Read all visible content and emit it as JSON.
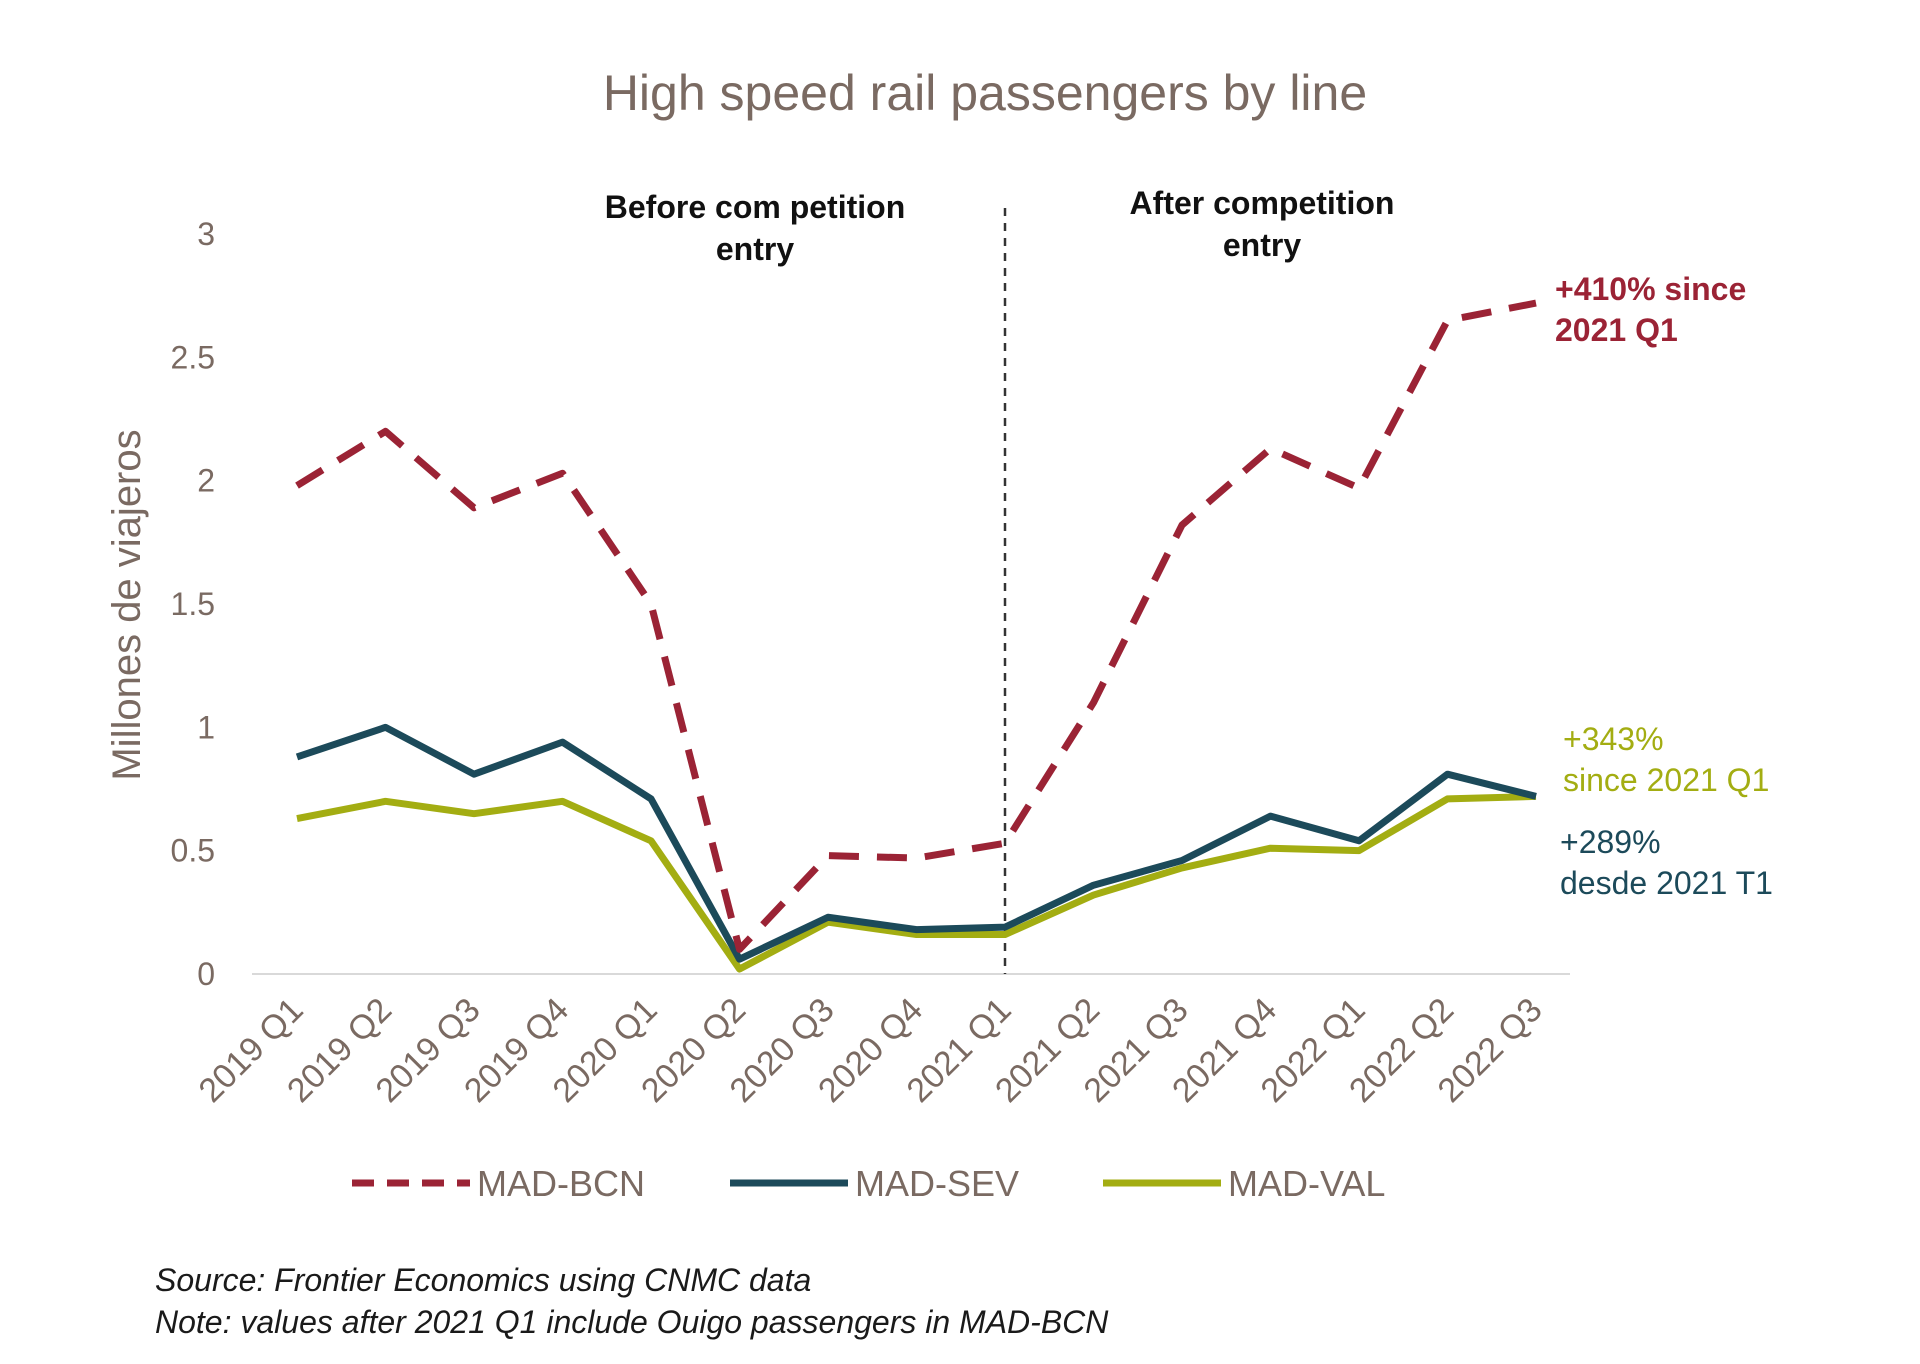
{
  "chart_data": {
    "type": "line",
    "title": "High speed rail passengers by line",
    "ylabel": "Millones de viajeros",
    "xlabel": "",
    "ylim": [
      0,
      3
    ],
    "yticks": [
      0,
      0.5,
      1,
      1.5,
      2,
      2.5,
      3
    ],
    "ytick_labels": [
      "0",
      "0.5",
      "1",
      "1.5",
      "2",
      "2.5",
      "3"
    ],
    "categories": [
      "2019 Q1",
      "2019 Q2",
      "2019 Q3",
      "2019 Q4",
      "2020 Q1",
      "2020 Q2",
      "2020 Q3",
      "2020 Q4",
      "2021 Q1",
      "2021 Q2",
      "2021 Q3",
      "2021 Q4",
      "2022 Q1",
      "2022 Q2",
      "2022 Q3"
    ],
    "series": [
      {
        "name": "MAD-BCN",
        "color": "#9b2335",
        "style": "dashed",
        "values": [
          1.98,
          2.2,
          1.89,
          2.03,
          1.5,
          0.1,
          0.48,
          0.47,
          0.53,
          1.1,
          1.82,
          2.13,
          1.97,
          2.65,
          2.72
        ]
      },
      {
        "name": "MAD-SEV",
        "color": "#1c4a5a",
        "style": "solid",
        "values": [
          0.88,
          1.0,
          0.81,
          0.94,
          0.71,
          0.06,
          0.23,
          0.18,
          0.19,
          0.36,
          0.46,
          0.64,
          0.54,
          0.81,
          0.72
        ]
      },
      {
        "name": "MAD-VAL",
        "color": "#a3ad12",
        "style": "solid",
        "values": [
          0.63,
          0.7,
          0.65,
          0.7,
          0.54,
          0.02,
          0.21,
          0.16,
          0.16,
          0.32,
          0.43,
          0.51,
          0.5,
          0.71,
          0.72
        ]
      }
    ],
    "divider_after": "2021 Q1",
    "sections": {
      "before": [
        "Before com petition",
        "entry"
      ],
      "after": [
        "After competition",
        "entry"
      ]
    },
    "annotations": [
      {
        "series": "MAD-BCN",
        "lines": [
          "+410% since",
          "2021 Q1"
        ],
        "color": "#9b2335",
        "bold": true
      },
      {
        "series": "MAD-VAL",
        "lines": [
          "+343%",
          "since 2021 Q1"
        ],
        "color": "#a3ad12",
        "bold": false
      },
      {
        "series": "MAD-SEV",
        "lines": [
          "+289%",
          "desde 2021 T1"
        ],
        "color": "#1c4a5a",
        "bold": false
      }
    ],
    "legend_position": "bottom",
    "grid": false
  },
  "footnotes": {
    "source": "Source: Frontier Economics using CNMC data",
    "note": "Note: values after 2021 Q1 include Ouigo passengers in MAD-BCN"
  }
}
